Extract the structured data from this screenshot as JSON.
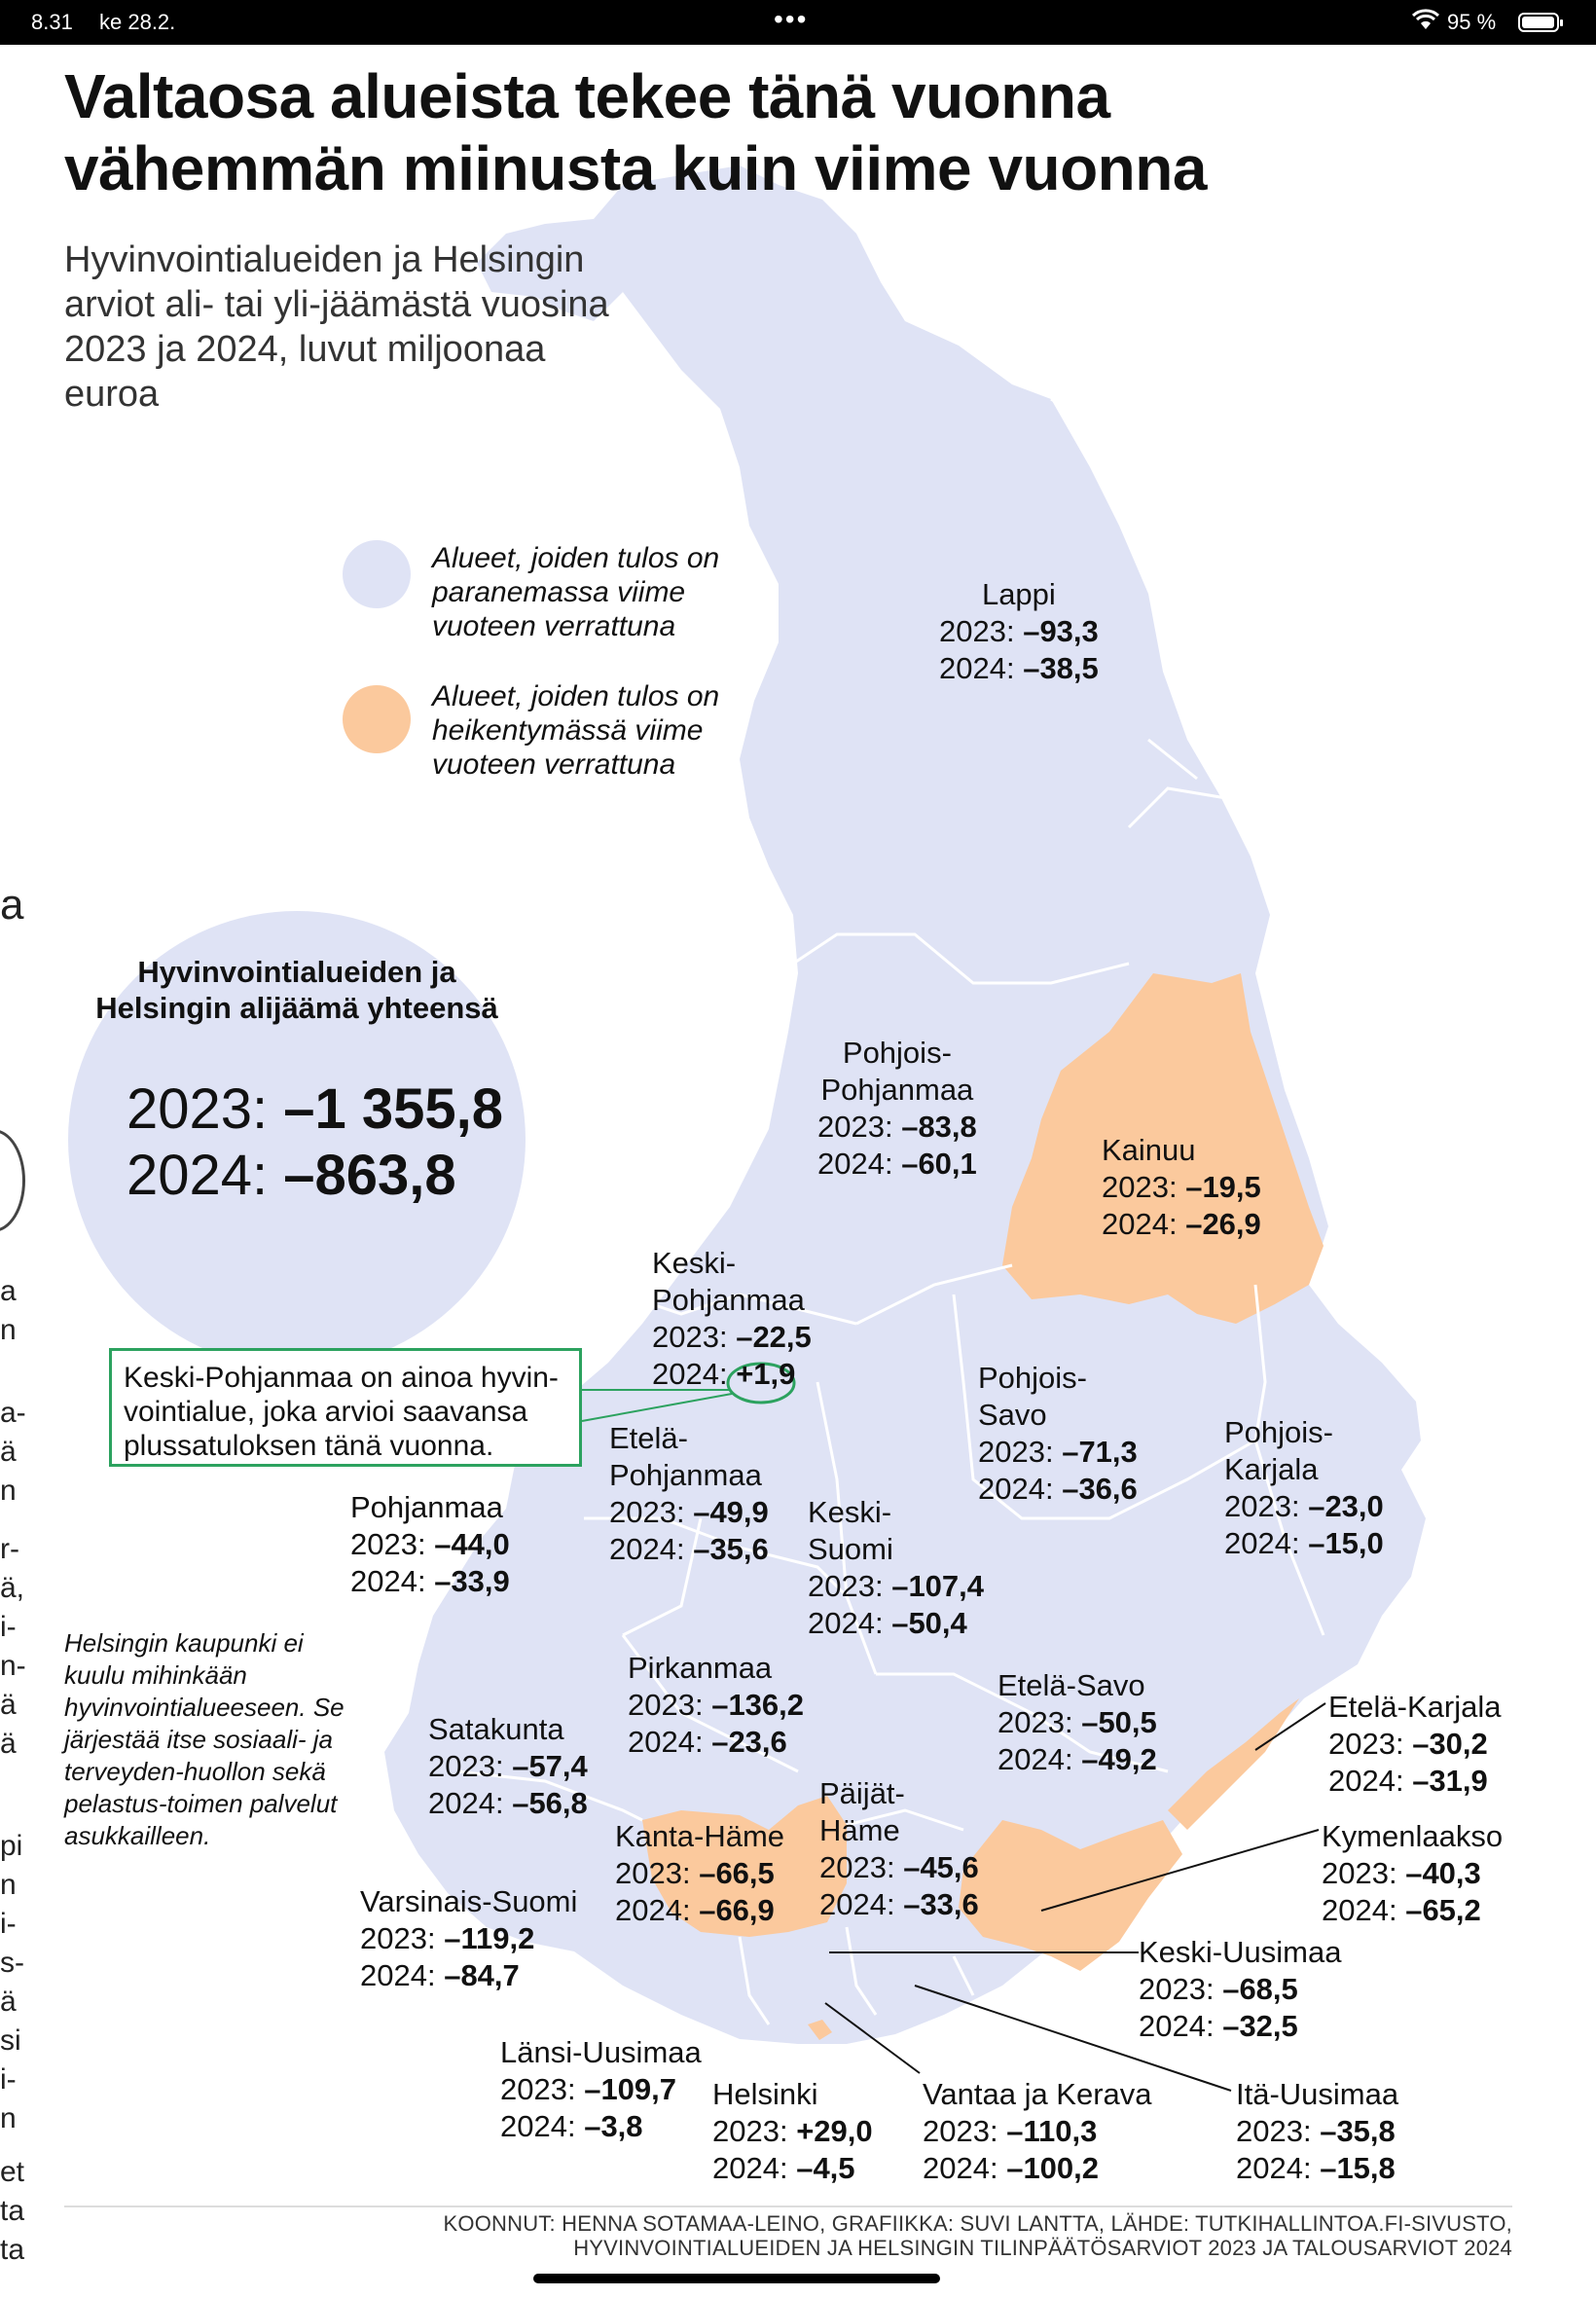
{
  "status_bar": {
    "time": "8.31",
    "date": "ke 28.2.",
    "battery": "95 %"
  },
  "title": "Valtaosa alueista tekee tänä vuonna vähemmän miinusta kuin viime vuonna",
  "subtitle": "Hyvinvointialueiden ja Helsingin arviot  ali- tai yli-jäämästä vuosina 2023 ja 2024, luvut miljoonaa euroa",
  "colors": {
    "improving": "#dfe3f5",
    "worsening": "#fbc99d",
    "highlight": "#2ca25f"
  },
  "legend": [
    {
      "color": "#dfe3f5",
      "label": "Alueet, joiden tulos on paranemassa viime vuoteen verrattuna"
    },
    {
      "color": "#fbc99d",
      "label": "Alueet, joiden tulos on heikentymässä viime vuoteen verrattuna"
    }
  ],
  "total": {
    "label": "Hyvinvointialueiden ja Helsingin alijäämä yhteensä",
    "y2023_label": "2023:",
    "y2023_value": "–1 355,8",
    "y2024_label": "2024:",
    "y2024_value": "–863,8"
  },
  "regions": [
    {
      "name": "Lappi",
      "v2023": "–93,3",
      "v2024": "–38,5",
      "status": "improving"
    },
    {
      "name": "Pohjois-\nPohjanmaa",
      "v2023": "–83,8",
      "v2024": "–60,1",
      "status": "improving"
    },
    {
      "name": "Kainuu",
      "v2023": "–19,5",
      "v2024": "–26,9",
      "status": "worsening"
    },
    {
      "name": "Keski-\nPohjanmaa",
      "v2023": "–22,5",
      "v2024": "+1,9",
      "status": "improving"
    },
    {
      "name": "Pohjois-\nSavo",
      "v2023": "–71,3",
      "v2024": "–36,6",
      "status": "improving"
    },
    {
      "name": "Pohjois-\nKarjala",
      "v2023": "–23,0",
      "v2024": "–15,0",
      "status": "improving"
    },
    {
      "name": "Etelä-\nPohjanmaa",
      "v2023": "–49,9",
      "v2024": "–35,6",
      "status": "improving"
    },
    {
      "name": "Pohjanmaa",
      "v2023": "–44,0",
      "v2024": "–33,9",
      "status": "improving"
    },
    {
      "name": "Keski-\nSuomi",
      "v2023": "–107,4",
      "v2024": "–50,4",
      "status": "improving"
    },
    {
      "name": "Pirkanmaa",
      "v2023": "–136,2",
      "v2024": "–23,6",
      "status": "improving"
    },
    {
      "name": "Etelä-Savo",
      "v2023": "–50,5",
      "v2024": "–49,2",
      "status": "improving"
    },
    {
      "name": "Etelä-Karjala",
      "v2023": "–30,2",
      "v2024": "–31,9",
      "status": "worsening"
    },
    {
      "name": "Satakunta",
      "v2023": "–57,4",
      "v2024": "–56,8",
      "status": "improving"
    },
    {
      "name": "Päijät-\nHäme",
      "v2023": "–45,6",
      "v2024": "–33,6",
      "status": "improving"
    },
    {
      "name": "Kanta-Häme",
      "v2023": "–66,5",
      "v2024": "–66,9",
      "status": "worsening"
    },
    {
      "name": "Kymenlaakso",
      "v2023": "–40,3",
      "v2024": "–65,2",
      "status": "worsening"
    },
    {
      "name": "Varsinais-Suomi",
      "v2023": "–119,2",
      "v2024": "–84,7",
      "status": "improving"
    },
    {
      "name": "Keski-Uusimaa",
      "v2023": "–68,5",
      "v2024": "–32,5",
      "status": "improving"
    },
    {
      "name": "Länsi-Uusimaa",
      "v2023": "–109,7",
      "v2024": "–3,8",
      "status": "improving"
    },
    {
      "name": "Helsinki",
      "v2023": "+29,0",
      "v2024": "–4,5",
      "status": "worsening"
    },
    {
      "name": "Vantaa ja Kerava",
      "v2023": "–110,3",
      "v2024": "–100,2",
      "status": "improving"
    },
    {
      "name": "Itä-Uusimaa",
      "v2023": "–35,8",
      "v2024": "–15,8",
      "status": "improving"
    }
  ],
  "year_labels": {
    "y2023": "2023:",
    "y2024": "2024:"
  },
  "keski_pohjanmaa_note": "Keski-Pohjanmaa on ainoa hyvin-vointialue, joka arvioi saavansa plussatuloksen tänä vuonna.",
  "helsinki_note": "Helsingin kaupunki ei kuulu mihinkään hyvinvointialueeseen. Se järjestää itse sosiaali- ja terveyden-huollon sekä pelastus-toimen palvelut asukkailleen.",
  "credits_line1": "KOONNUT: HENNA SOTAMAA-LEINO, GRAFIIKKA: SUVI LANTTA, LÄHDE: TUTKIHALLINTOA.FI-SIVUSTO,",
  "credits_line2": "HYVINVOINTIALUEIDEN JA HELSINGIN TILINPÄÄTÖSARVIOT 2023 JA TALOUSARVIOT 2024",
  "edge_fragments": [
    "a",
    "a",
    "n",
    "a-",
    "ä",
    "n",
    "r-",
    "ä,",
    "i-",
    "n-",
    "ä",
    "ä",
    "pi",
    "n",
    "i-",
    "s-",
    "ä",
    "si",
    "i-",
    "n",
    "et",
    "ta",
    "ta"
  ]
}
